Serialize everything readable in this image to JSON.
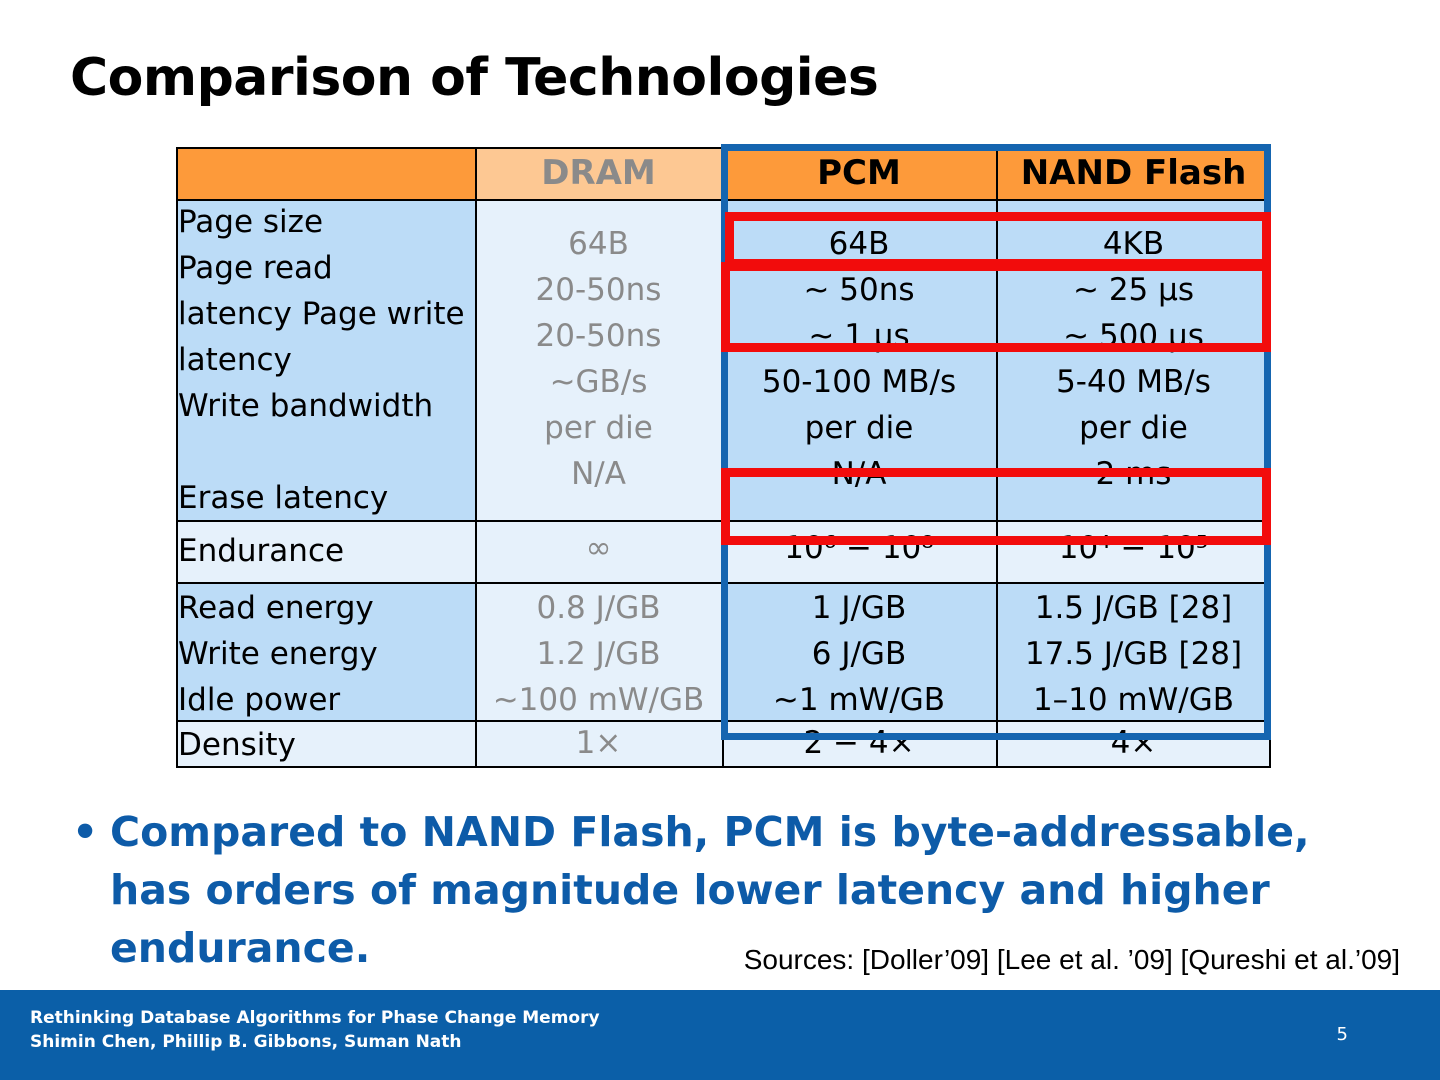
{
  "title": "Comparison of Technologies",
  "colors": {
    "header_orange": "#fd9a3a",
    "header_dram": "#fdc893",
    "row_blue": "#bcdcf7",
    "row_light": "#e6f1fb",
    "frame_blue": "#1565b0",
    "highlight_red": "#f20c0c",
    "bullet_blue": "#0d5ba8",
    "footer_blue": "#0b5fa8"
  },
  "table": {
    "headers": [
      "",
      "DRAM",
      "PCM",
      "NAND  Flash"
    ],
    "rows": [
      {
        "label_lines": [
          "Page  size",
          "Page  read",
          "latency Page  write",
          "latency",
          "Write bandwidth",
          "",
          "Erase  latency"
        ],
        "dram": [
          "64B",
          "20-50ns",
          "20-50ns",
          "~GB/s",
          "per die",
          "N/A"
        ],
        "pcm": [
          "64B",
          "∼ 50ns",
          "∼ 1 μs",
          "50-100 MB/s",
          "per die",
          "N/A"
        ],
        "nand": [
          "4KB",
          "∼ 25 μs",
          "∼ 500 μs",
          "5-40 MB/s",
          "per die",
          "2 ms"
        ]
      },
      {
        "label_lines": [
          "Endurance"
        ],
        "dram": [
          "∞"
        ],
        "pcm": [
          "10⁶ − 10⁸"
        ],
        "nand": [
          "10⁴ − 10⁵"
        ]
      },
      {
        "label_lines": [
          "Read  energy",
          "Write energy",
          "Idle power"
        ],
        "dram": [
          "0.8 J/GB",
          "1.2 J/GB",
          "~100 mW/GB"
        ],
        "pcm": [
          "1 J/GB",
          "6 J/GB",
          "~1 mW/GB"
        ],
        "nand": [
          "1.5 J/GB [28]",
          "17.5 J/GB [28]",
          "1–10 mW/GB"
        ]
      },
      {
        "label_lines": [
          "Density"
        ],
        "dram": [
          "1×"
        ],
        "pcm": [
          "2 − 4×"
        ],
        "nand": [
          "4×"
        ]
      }
    ]
  },
  "bullet": "Compared to NAND Flash, PCM is byte-addressable, has orders of magnitude lower latency and higher endurance.",
  "sources": "Sources: [Doller’09] [Lee et al. ’09] [Qureshi et al.’09]",
  "footer": {
    "line1": "Rethinking Database Algorithms for Phase Change Memory",
    "line2": "Shimin Chen, Phillip B. Gibbons, Suman Nath",
    "page": "5"
  }
}
